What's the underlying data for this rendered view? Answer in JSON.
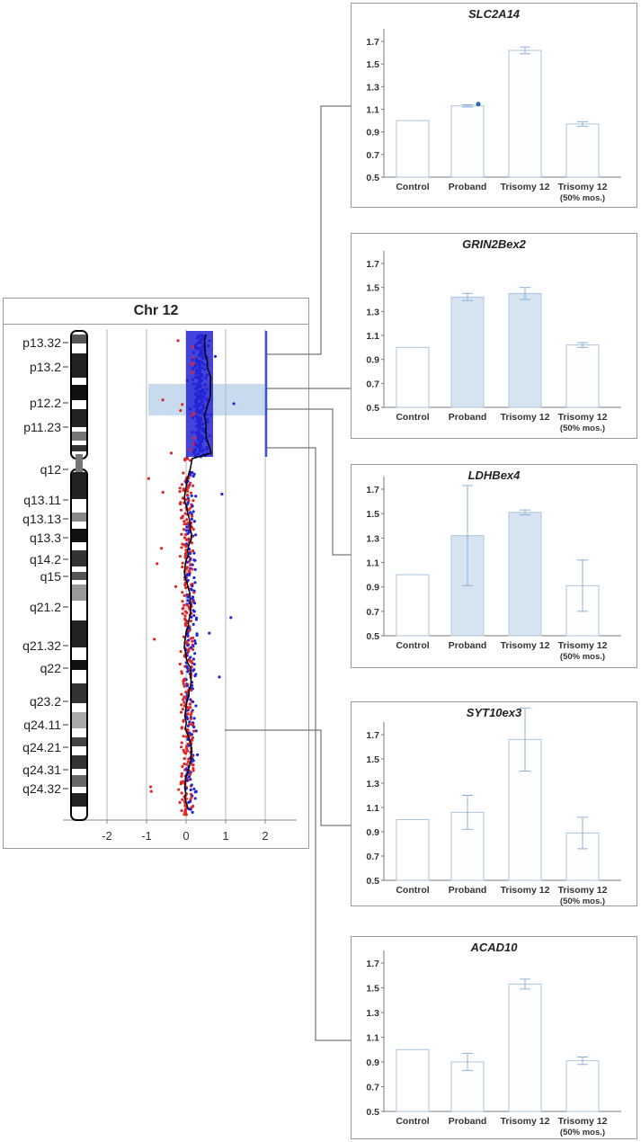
{
  "chromosome": {
    "title": "Chr 12",
    "bands": [
      "p13.32",
      "p13.2",
      "p12.2",
      "p11.23",
      "q12",
      "q13.11",
      "q13.13",
      "q13.3",
      "q14.2",
      "q15",
      "q21.2",
      "q21.32",
      "q22",
      "q23.2",
      "q24.11",
      "q24.21",
      "q24.31",
      "q24.32"
    ],
    "x_ticks": [
      "-2",
      "-1",
      "0",
      "1",
      "2"
    ]
  },
  "chart_data": [
    {
      "type": "bar",
      "title": "SLC2A14",
      "categories": [
        "Control",
        "Proband",
        "Trisomy 12",
        "Trisomy 12\n(50% mos.)"
      ],
      "values": [
        1.0,
        1.13,
        1.62,
        0.97
      ],
      "errors": [
        0,
        0.01,
        0.03,
        0.02
      ],
      "ylim": [
        0.5,
        1.7
      ],
      "yticks": [
        "0.5",
        "0.7",
        "0.9",
        "1.1",
        "1.3",
        "1.5",
        "1.7"
      ]
    },
    {
      "type": "bar",
      "title": "GRIN2Bex2",
      "categories": [
        "Control",
        "Proband",
        "Trisomy 12",
        "Trisomy 12\n(50% mos.)"
      ],
      "values": [
        1.0,
        1.42,
        1.45,
        1.02
      ],
      "errors": [
        0,
        0.03,
        0.05,
        0.02
      ],
      "ylim": [
        0.5,
        1.7
      ],
      "yticks": [
        "0.5",
        "0.7",
        "0.9",
        "1.1",
        "1.3",
        "1.5",
        "1.7"
      ]
    },
    {
      "type": "bar",
      "title": "LDHBex4",
      "categories": [
        "Control",
        "Proband",
        "Trisomy 12",
        "Trisomy 12\n(50% mos.)"
      ],
      "values": [
        1.0,
        1.32,
        1.51,
        0.91
      ],
      "errors": [
        0,
        0.41,
        0.02,
        0.21
      ],
      "ylim": [
        0.5,
        1.7
      ],
      "yticks": [
        "0.5",
        "0.7",
        "0.9",
        "1.1",
        "1.3",
        "1.5",
        "1.7"
      ]
    },
    {
      "type": "bar",
      "title": "SYT10ex3",
      "categories": [
        "Control",
        "Proband",
        "Trisomy 12",
        "Trisomy 12\n(50% mos.)"
      ],
      "values": [
        1.0,
        1.06,
        1.66,
        0.89
      ],
      "errors": [
        0,
        0.14,
        0.26,
        0.13
      ],
      "ylim": [
        0.5,
        1.7
      ],
      "yticks": [
        "0.5",
        "0.7",
        "0.9",
        "1.1",
        "1.3",
        "1.5",
        "1.7"
      ]
    },
    {
      "type": "bar",
      "title": "ACAD10",
      "categories": [
        "Control",
        "Proband",
        "Trisomy 12",
        "Trisomy 12\n(50% mos.)"
      ],
      "values": [
        1.0,
        0.9,
        1.53,
        0.91
      ],
      "errors": [
        0,
        0.07,
        0.04,
        0.03
      ],
      "ylim": [
        0.5,
        1.7
      ],
      "yticks": [
        "0.5",
        "0.7",
        "0.9",
        "1.1",
        "1.3",
        "1.5",
        "1.7"
      ]
    }
  ],
  "colors": {
    "bar_edge": "#a9c4df",
    "bar_fill_shaded": "#d6e3f1",
    "error_bar": "#8fb0d3",
    "axis": "#7a7a7a",
    "gain_blue": "#2323d6",
    "loss_red": "#e32424",
    "trend_line": "#000000",
    "highlight": "#c8dbee",
    "cnv_bar": "#3b4fe0",
    "proband_dot": "#2a6fa8"
  }
}
